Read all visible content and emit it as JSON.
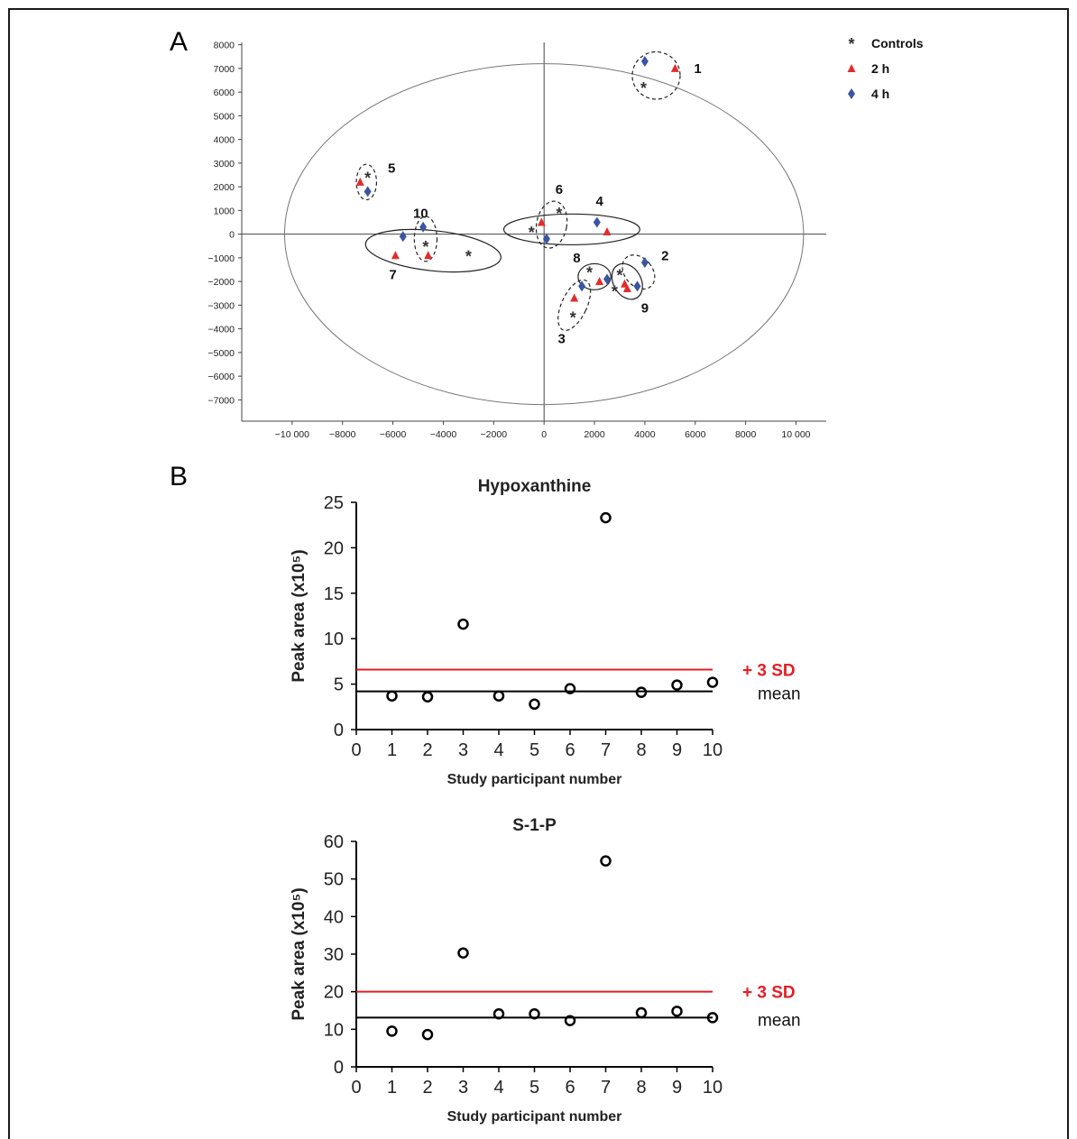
{
  "panels": {
    "A": {
      "label": "A"
    },
    "B": {
      "label": "B"
    }
  },
  "colors": {
    "frame": "#1a1a1a",
    "controls": "#333333",
    "two_h": "#e32b2b",
    "four_h": "#3a55a4",
    "sd_line": "#e31e24",
    "mean_line": "#000000",
    "axis": "#444444"
  },
  "chart_data": [
    {
      "id": "A",
      "type": "scatter",
      "title": "",
      "xlabel": "",
      "ylabel": "",
      "xlim": [
        -12000,
        11200
      ],
      "ylim": [
        -7900,
        8100
      ],
      "x_ticks": [
        {
          "value": -10000,
          "label": "−10 000"
        },
        {
          "value": -8000,
          "label": "−8000"
        },
        {
          "value": -6000,
          "label": "−6000"
        },
        {
          "value": -4000,
          "label": "−4000"
        },
        {
          "value": -2000,
          "label": "−2000"
        },
        {
          "value": 0,
          "label": "0"
        },
        {
          "value": 2000,
          "label": "2000"
        },
        {
          "value": 4000,
          "label": "4000"
        },
        {
          "value": 6000,
          "label": "6000"
        },
        {
          "value": 8000,
          "label": "8000"
        },
        {
          "value": 10000,
          "label": "10 000"
        }
      ],
      "y_ticks": [
        {
          "value": 8000,
          "label": "8000"
        },
        {
          "value": 7000,
          "label": "7000"
        },
        {
          "value": 6000,
          "label": "6000"
        },
        {
          "value": 5000,
          "label": "5000"
        },
        {
          "value": 4000,
          "label": "4000"
        },
        {
          "value": 3000,
          "label": "3000"
        },
        {
          "value": 2000,
          "label": "2000"
        },
        {
          "value": 1000,
          "label": "1000"
        },
        {
          "value": 0,
          "label": "0"
        },
        {
          "value": -1000,
          "label": "−1000"
        },
        {
          "value": -2000,
          "label": "−2000"
        },
        {
          "value": -3000,
          "label": "−3000"
        },
        {
          "value": -4000,
          "label": "−4000"
        },
        {
          "value": -5000,
          "label": "−5000"
        },
        {
          "value": -6000,
          "label": "−6000"
        },
        {
          "value": -7000,
          "label": "−7000"
        }
      ],
      "confidence_ellipse": {
        "cx": 0,
        "cy": 0,
        "rx": 10300,
        "ry": 7200
      },
      "legend": {
        "placement": "top-right",
        "entries": [
          {
            "name": "Controls",
            "marker": "asterisk"
          },
          {
            "name": "2 h",
            "marker": "triangle"
          },
          {
            "name": "4 h",
            "marker": "diamond"
          }
        ]
      },
      "series": [
        {
          "name": "Controls",
          "marker": "asterisk",
          "points": [
            {
              "x": 3950,
              "y": 6200
            },
            {
              "x": -7000,
              "y": 2400
            },
            {
              "x": 600,
              "y": 900
            },
            {
              "x": -500,
              "y": 100
            },
            {
              "x": -4700,
              "y": -500
            },
            {
              "x": -3000,
              "y": -900
            },
            {
              "x": 1800,
              "y": -1600
            },
            {
              "x": 3000,
              "y": -1700
            },
            {
              "x": 2800,
              "y": -2400
            },
            {
              "x": 1150,
              "y": -3500
            }
          ]
        },
        {
          "name": "2 h",
          "marker": "triangle",
          "points": [
            {
              "x": 5200,
              "y": 7000
            },
            {
              "x": -7300,
              "y": 2200
            },
            {
              "x": -100,
              "y": 500
            },
            {
              "x": 2500,
              "y": 100
            },
            {
              "x": -4600,
              "y": -900
            },
            {
              "x": -5900,
              "y": -900
            },
            {
              "x": 2200,
              "y": -2000
            },
            {
              "x": 3200,
              "y": -2100
            },
            {
              "x": 3300,
              "y": -2300
            },
            {
              "x": 1200,
              "y": -2700
            }
          ]
        },
        {
          "name": "4 h",
          "marker": "diamond",
          "points": [
            {
              "x": 4000,
              "y": 7300
            },
            {
              "x": -7000,
              "y": 1800
            },
            {
              "x": 2100,
              "y": 500
            },
            {
              "x": 100,
              "y": -200
            },
            {
              "x": -4800,
              "y": 300
            },
            {
              "x": -5600,
              "y": -100
            },
            {
              "x": 4000,
              "y": -1200
            },
            {
              "x": 2500,
              "y": -1900
            },
            {
              "x": 3700,
              "y": -2200
            },
            {
              "x": 1500,
              "y": -2200
            }
          ]
        }
      ],
      "groups": [
        {
          "label": "1",
          "style": "dashed",
          "cx": 4450,
          "cy": 6700,
          "rx": 950,
          "ry": 1000,
          "angle": 0,
          "label_x": 6100,
          "label_y": 6800
        },
        {
          "label": "5",
          "style": "dashed",
          "cx": -7050,
          "cy": 2200,
          "rx": 400,
          "ry": 750,
          "angle": 0,
          "label_x": -6050,
          "label_y": 2600
        },
        {
          "label": "10",
          "style": "dashed",
          "cx": -4700,
          "cy": -200,
          "rx": 450,
          "ry": 950,
          "angle": 0,
          "label_x": -4900,
          "label_y": 700
        },
        {
          "label": "7",
          "style": "solid",
          "cx": -4400,
          "cy": -700,
          "rx": 2700,
          "ry": 850,
          "angle": 6,
          "label_x": -6000,
          "label_y": -1900
        },
        {
          "label": "6",
          "style": "dashed",
          "cx": 300,
          "cy": 400,
          "rx": 600,
          "ry": 1000,
          "angle": 10,
          "label_x": 600,
          "label_y": 1700
        },
        {
          "label": "4",
          "style": "solid",
          "cx": 1100,
          "cy": 200,
          "rx": 2700,
          "ry": 650,
          "angle": 0,
          "label_x": 2200,
          "label_y": 1200
        },
        {
          "label": "2",
          "style": "dashed",
          "cx": 3750,
          "cy": -1600,
          "rx": 550,
          "ry": 800,
          "angle": -40,
          "label_x": 4800,
          "label_y": -1100
        },
        {
          "label": "8",
          "style": "solid",
          "cx": 2000,
          "cy": -1800,
          "rx": 650,
          "ry": 550,
          "angle": 0,
          "label_x": 1300,
          "label_y": -1200
        },
        {
          "label": "9",
          "style": "solid",
          "cx": 3300,
          "cy": -2000,
          "rx": 550,
          "ry": 800,
          "angle": -30,
          "label_x": 4000,
          "label_y": -3300
        },
        {
          "label": "3",
          "style": "dashed",
          "cx": 1200,
          "cy": -3000,
          "rx": 500,
          "ry": 1150,
          "angle": 25,
          "label_x": 700,
          "label_y": -4600
        }
      ]
    },
    {
      "id": "B-hypoxanthine",
      "type": "scatter",
      "title": "Hypoxanthine",
      "xlabel": "Study participant number",
      "ylabel": "Peak area (x10⁵)",
      "xlim": [
        0,
        10
      ],
      "ylim": [
        0,
        25
      ],
      "x_ticks": [
        0,
        1,
        2,
        3,
        4,
        5,
        6,
        7,
        8,
        9,
        10
      ],
      "y_ticks": [
        0,
        5,
        10,
        15,
        20,
        25
      ],
      "x": [
        1,
        2,
        3,
        4,
        5,
        6,
        7,
        8,
        9,
        10
      ],
      "values": [
        3.7,
        3.6,
        11.6,
        3.7,
        2.8,
        4.5,
        23.3,
        4.1,
        4.9,
        5.2
      ],
      "reference_lines": [
        {
          "name": "+ 3 SD",
          "value": 6.6,
          "color": "#e31e24"
        },
        {
          "name": "mean",
          "value": 4.2,
          "color": "#000000"
        }
      ]
    },
    {
      "id": "B-s1p",
      "type": "scatter",
      "title": "S-1-P",
      "xlabel": "Study participant number",
      "ylabel": "Peak area (x10⁵)",
      "xlim": [
        0,
        10
      ],
      "ylim": [
        0,
        60
      ],
      "x_ticks": [
        0,
        1,
        2,
        3,
        4,
        5,
        6,
        7,
        8,
        9,
        10
      ],
      "y_ticks": [
        0,
        10,
        20,
        30,
        40,
        50,
        60
      ],
      "x": [
        1,
        2,
        3,
        4,
        5,
        6,
        7,
        8,
        9,
        10
      ],
      "values": [
        9.5,
        8.6,
        30.3,
        14.1,
        14.1,
        12.3,
        54.8,
        14.4,
        14.8,
        13.1
      ],
      "reference_lines": [
        {
          "name": "+ 3 SD",
          "value": 20,
          "color": "#e31e24"
        },
        {
          "name": "mean",
          "value": 13.1,
          "color": "#000000"
        }
      ]
    }
  ]
}
